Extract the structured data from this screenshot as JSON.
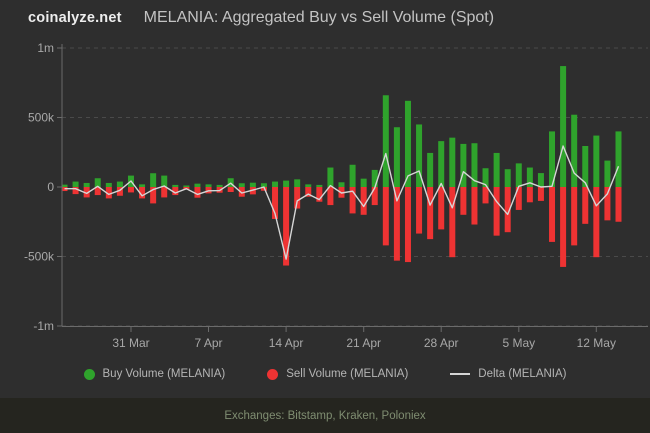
{
  "brand": "coinalyze.net",
  "title": "MELANIA: Aggregated Buy vs Sell Volume (Spot)",
  "legend": {
    "buy": "Buy Volume (MELANIA)",
    "sell": "Sell Volume (MELANIA)",
    "delta": "Delta (MELANIA)"
  },
  "footer": "Exchanges: Bitstamp, Kraken, Poloniex",
  "colors": {
    "bg": "#2e2e2e",
    "buy": "#2fa32c",
    "sell": "#ee3333",
    "delta": "#d6d6d6",
    "grid": "#4a4a4a",
    "axis": "#6b6b6b",
    "tick_text": "#a8a8a8",
    "footer_bg": "#25251f",
    "footer_text": "#7f8d71"
  },
  "chart_data": {
    "type": "bar",
    "title": "MELANIA: Aggregated Buy vs Sell Volume (Spot)",
    "grid": "dashed-horizontal",
    "legend_position": "bottom",
    "ylim": [
      -1000000,
      1000000
    ],
    "y_ticks": [
      {
        "value": 1000000,
        "label": "1m"
      },
      {
        "value": 500000,
        "label": "500k"
      },
      {
        "value": 0,
        "label": "0"
      },
      {
        "value": -500000,
        "label": "-500k"
      },
      {
        "value": -1000000,
        "label": "-1m"
      }
    ],
    "x": [
      "25 Mar",
      "26 Mar",
      "27 Mar",
      "28 Mar",
      "29 Mar",
      "30 Mar",
      "31 Mar",
      "1 Apr",
      "2 Apr",
      "3 Apr",
      "4 Apr",
      "5 Apr",
      "6 Apr",
      "7 Apr",
      "8 Apr",
      "9 Apr",
      "10 Apr",
      "11 Apr",
      "12 Apr",
      "13 Apr",
      "14 Apr",
      "15 Apr",
      "16 Apr",
      "17 Apr",
      "18 Apr",
      "19 Apr",
      "20 Apr",
      "21 Apr",
      "22 Apr",
      "23 Apr",
      "24 Apr",
      "25 Apr",
      "26 Apr",
      "27 Apr",
      "28 Apr",
      "29 Apr",
      "30 Apr",
      "1 May",
      "2 May",
      "3 May",
      "4 May",
      "5 May",
      "6 May",
      "7 May",
      "8 May",
      "9 May",
      "10 May",
      "11 May",
      "12 May",
      "13 May",
      "14 May"
    ],
    "x_ticks": [
      {
        "index": 6,
        "label": "31 Mar"
      },
      {
        "index": 13,
        "label": "7 Apr"
      },
      {
        "index": 20,
        "label": "14 Apr"
      },
      {
        "index": 27,
        "label": "21 Apr"
      },
      {
        "index": 34,
        "label": "28 Apr"
      },
      {
        "index": 41,
        "label": "5 May"
      },
      {
        "index": 48,
        "label": "12 May"
      }
    ],
    "series": [
      {
        "name": "Buy Volume (MELANIA)",
        "type": "bar",
        "direction": "up",
        "color": "#2fa32c",
        "values": [
          17000,
          39000,
          29000,
          63000,
          29000,
          39000,
          82000,
          19000,
          99000,
          82000,
          15000,
          7000,
          24000,
          19000,
          15000,
          63000,
          27000,
          31000,
          27000,
          39000,
          46000,
          55000,
          19000,
          15000,
          140000,
          34000,
          160000,
          60000,
          123000,
          660000,
          430000,
          620000,
          450000,
          245000,
          330000,
          355000,
          310000,
          315000,
          135000,
          245000,
          128000,
          170000,
          140000,
          100000,
          400000,
          870000,
          520000,
          295000,
          370000,
          190000,
          400000
        ]
      },
      {
        "name": "Sell Volume (MELANIA)",
        "type": "bar",
        "direction": "down",
        "color": "#ee3333",
        "values": [
          29000,
          51000,
          75000,
          58000,
          82000,
          63000,
          39000,
          82000,
          118000,
          75000,
          58000,
          19000,
          77000,
          46000,
          41000,
          36000,
          70000,
          53000,
          27000,
          230000,
          565000,
          155000,
          70000,
          106000,
          130000,
          77000,
          190000,
          200000,
          130000,
          420000,
          530000,
          540000,
          335000,
          375000,
          305000,
          505000,
          200000,
          270000,
          118000,
          350000,
          325000,
          165000,
          110000,
          100000,
          395000,
          575000,
          420000,
          265000,
          505000,
          240000,
          250000
        ]
      },
      {
        "name": "Delta (MELANIA)",
        "type": "line",
        "color": "#d6d6d6",
        "values": [
          -12000,
          -12000,
          -46000,
          5000,
          -53000,
          -24000,
          43000,
          -63000,
          -19000,
          7000,
          -43000,
          -12000,
          -53000,
          -27000,
          -26000,
          27000,
          -43000,
          -22000,
          0,
          -191000,
          -519000,
          -100000,
          -51000,
          -91000,
          10000,
          -43000,
          -30000,
          -140000,
          -7000,
          240000,
          -100000,
          80000,
          115000,
          -130000,
          25000,
          -150000,
          110000,
          45000,
          17000,
          -105000,
          -197000,
          5000,
          30000,
          0,
          5000,
          295000,
          100000,
          30000,
          -135000,
          -50000,
          150000
        ]
      }
    ]
  }
}
